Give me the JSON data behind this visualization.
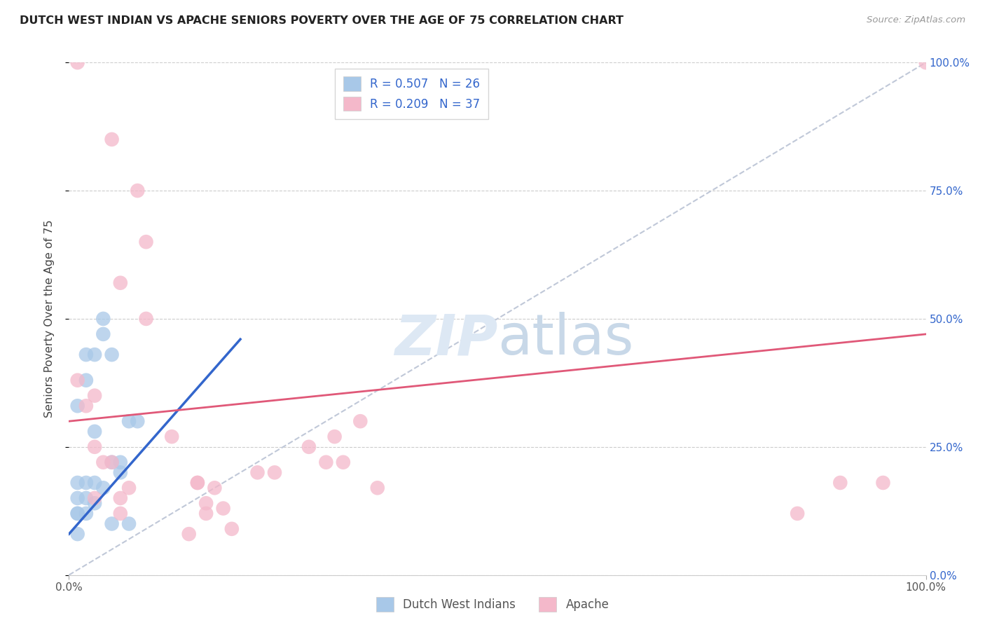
{
  "title": "DUTCH WEST INDIAN VS APACHE SENIORS POVERTY OVER THE AGE OF 75 CORRELATION CHART",
  "source": "Source: ZipAtlas.com",
  "ylabel": "Seniors Poverty Over the Age of 75",
  "legend1_label": "R = 0.507   N = 26",
  "legend2_label": "R = 0.209   N = 37",
  "legend_color1": "#a8c8e8",
  "legend_color2": "#f4b8ca",
  "scatter_color1": "#a8c8e8",
  "scatter_color2": "#f4b8ca",
  "line_color1": "#3366cc",
  "line_color2": "#e05878",
  "diag_color": "#c0c8d8",
  "text_color_blue": "#3366cc",
  "watermark_color": "#dde8f4",
  "dutch_x": [
    1,
    2,
    3,
    4,
    5,
    4,
    2,
    7,
    8,
    3,
    5,
    6,
    2,
    1,
    3,
    4,
    1,
    2,
    3,
    1,
    1,
    2,
    5,
    7,
    1,
    6
  ],
  "dutch_y": [
    33,
    38,
    43,
    47,
    43,
    50,
    43,
    30,
    30,
    28,
    22,
    22,
    18,
    18,
    18,
    17,
    15,
    15,
    14,
    12,
    12,
    12,
    10,
    10,
    8,
    20
  ],
  "apache_x": [
    1,
    5,
    8,
    9,
    6,
    9,
    12,
    15,
    16,
    15,
    17,
    16,
    18,
    14,
    19,
    1,
    2,
    3,
    3,
    4,
    5,
    3,
    6,
    7,
    6,
    22,
    24,
    28,
    30,
    31,
    32,
    34,
    36,
    85,
    90,
    95,
    100
  ],
  "apache_y": [
    100,
    85,
    75,
    65,
    57,
    50,
    27,
    18,
    12,
    18,
    17,
    14,
    13,
    8,
    9,
    38,
    33,
    35,
    25,
    22,
    22,
    15,
    15,
    17,
    12,
    20,
    20,
    25,
    22,
    27,
    22,
    30,
    17,
    12,
    18,
    18,
    100
  ],
  "dutch_line_x": [
    0,
    20
  ],
  "dutch_line_y": [
    8,
    46
  ],
  "apache_line_x": [
    0,
    100
  ],
  "apache_line_y": [
    30,
    47
  ],
  "diag_line_x": [
    0,
    100
  ],
  "diag_line_y": [
    0,
    100
  ],
  "ytick_values": [
    0,
    25,
    50,
    75,
    100
  ],
  "xtick_values": [
    0,
    100
  ]
}
